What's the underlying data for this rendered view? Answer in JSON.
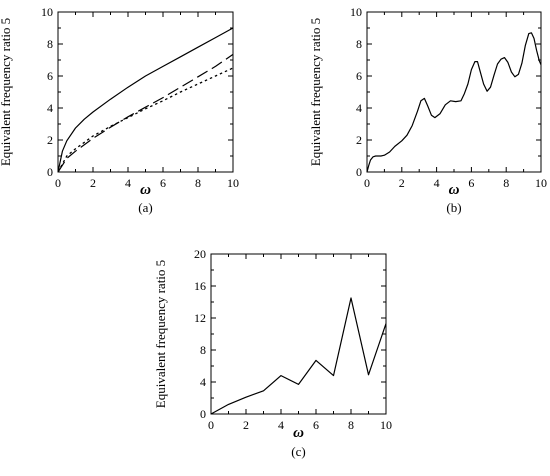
{
  "chart_data": [
    {
      "type": "line",
      "panel": "(a)",
      "xlabel": "ω",
      "ylabel": "Equivalent frequency ratio 5",
      "xlim": [
        0,
        10
      ],
      "ylim": [
        0,
        10
      ],
      "xticks": [
        "0",
        "2",
        "4",
        "6",
        "8",
        "10"
      ],
      "yticks": [
        "0",
        "2",
        "4",
        "6",
        "8",
        "10"
      ],
      "grid": false,
      "legend": "none",
      "series": [
        {
          "style": "solid",
          "x": [
            0,
            0.25,
            0.5,
            1,
            1.5,
            2,
            3,
            4,
            5,
            6,
            7,
            8,
            9,
            10
          ],
          "y": [
            0,
            1.3,
            1.95,
            2.75,
            3.3,
            3.75,
            4.55,
            5.3,
            6.0,
            6.6,
            7.2,
            7.8,
            8.4,
            9.0
          ]
        },
        {
          "style": "dash",
          "x": [
            0,
            0.5,
            1,
            2,
            3,
            4,
            5,
            6,
            7,
            8,
            9,
            10
          ],
          "y": [
            0,
            0.85,
            1.3,
            2.1,
            2.8,
            3.45,
            4.05,
            4.65,
            5.3,
            5.95,
            6.6,
            7.35
          ]
        },
        {
          "style": "dot",
          "x": [
            0,
            0.5,
            1,
            2,
            3,
            4,
            5,
            6,
            7,
            8,
            9,
            10
          ],
          "y": [
            0,
            1.0,
            1.45,
            2.25,
            2.85,
            3.4,
            3.95,
            4.45,
            5.0,
            5.5,
            6.0,
            6.5
          ]
        }
      ]
    },
    {
      "type": "line",
      "panel": "(b)",
      "xlabel": "ω",
      "ylabel": "Equivalent frequency ratio 5",
      "xlim": [
        0,
        10
      ],
      "ylim": [
        0,
        10
      ],
      "xticks": [
        "0",
        "2",
        "4",
        "6",
        "8",
        "10"
      ],
      "yticks": [
        "0",
        "2",
        "4",
        "6",
        "8",
        "10"
      ],
      "grid": false,
      "legend": "none",
      "series": [
        {
          "style": "solid",
          "x": [
            0,
            0.1,
            0.2,
            0.35,
            0.5,
            0.8,
            1.0,
            1.3,
            1.6,
            2.0,
            2.3,
            2.6,
            2.9,
            3.1,
            3.3,
            3.5,
            3.7,
            3.9,
            4.2,
            4.5,
            4.8,
            5.1,
            5.4,
            5.6,
            5.8,
            6.0,
            6.2,
            6.35,
            6.5,
            6.7,
            6.9,
            7.1,
            7.3,
            7.5,
            7.7,
            7.9,
            8.1,
            8.3,
            8.5,
            8.7,
            8.9,
            9.1,
            9.3,
            9.45,
            9.6,
            9.75,
            9.9,
            10.0
          ],
          "y": [
            0,
            0.4,
            0.75,
            0.95,
            1.0,
            1.0,
            1.05,
            1.25,
            1.6,
            1.95,
            2.3,
            2.9,
            3.8,
            4.45,
            4.6,
            4.1,
            3.55,
            3.4,
            3.65,
            4.2,
            4.45,
            4.4,
            4.45,
            4.9,
            5.5,
            6.4,
            6.9,
            6.9,
            6.3,
            5.5,
            5.05,
            5.3,
            6.05,
            6.75,
            7.05,
            7.15,
            6.85,
            6.25,
            5.95,
            6.1,
            6.8,
            7.9,
            8.65,
            8.7,
            8.35,
            7.6,
            6.95,
            6.7
          ]
        }
      ]
    },
    {
      "type": "line",
      "panel": "(c)",
      "xlabel": "ω",
      "ylabel": "Equivalent frequency ratio 5",
      "xlim": [
        0,
        10
      ],
      "ylim": [
        0,
        20
      ],
      "xticks": [
        "0",
        "2",
        "4",
        "6",
        "8",
        "10"
      ],
      "yticks": [
        "0",
        "4",
        "8",
        "12",
        "16",
        "20"
      ],
      "grid": false,
      "legend": "none",
      "series": [
        {
          "style": "solid",
          "x": [
            0,
            1,
            2,
            3,
            4,
            5,
            6,
            7,
            8,
            9,
            10
          ],
          "y": [
            0,
            1.2,
            2.1,
            2.9,
            4.8,
            3.7,
            6.7,
            4.8,
            14.5,
            4.9,
            11.3
          ]
        }
      ]
    }
  ]
}
